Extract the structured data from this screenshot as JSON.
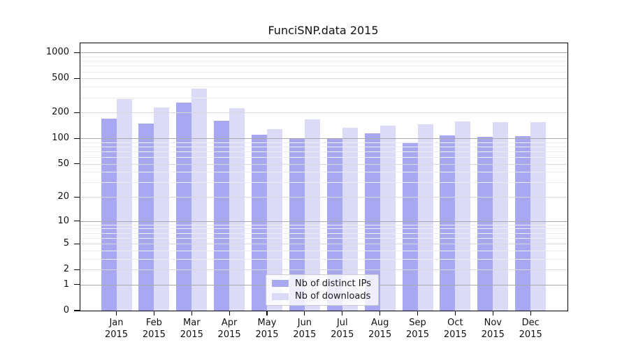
{
  "chart_data": {
    "type": "bar",
    "title": "FunciSNP.data 2015",
    "categories": [
      "Jan",
      "Feb",
      "Mar",
      "Apr",
      "May",
      "Jun",
      "Jul",
      "Aug",
      "Sep",
      "Oct",
      "Nov",
      "Dec"
    ],
    "category_year": "2015",
    "series": [
      {
        "name": "Nb of distinct IPs",
        "color": "#a8a8f2",
        "values": [
          170,
          150,
          260,
          160,
          110,
          101,
          100,
          115,
          90,
          108,
          105,
          106
        ]
      },
      {
        "name": "Nb of downloads",
        "color": "#dbdbf7",
        "values": [
          285,
          230,
          380,
          225,
          128,
          168,
          133,
          140,
          146,
          158,
          155,
          155
        ]
      }
    ],
    "xlabel": "",
    "ylabel": "",
    "y_scale": "log1p",
    "y_ticks": [
      0,
      1,
      2,
      5,
      10,
      20,
      50,
      100,
      200,
      500,
      1000
    ],
    "ylim": [
      0,
      1280
    ],
    "grid": true,
    "legend_position": "lower-center-inside",
    "colors": {
      "grid_decade": "#a9a9a9",
      "grid_labeled": "#d8d8d8",
      "grid_minor": "#ededed",
      "spine": "#000000",
      "background": "#ffffff",
      "text": "#111111"
    }
  }
}
